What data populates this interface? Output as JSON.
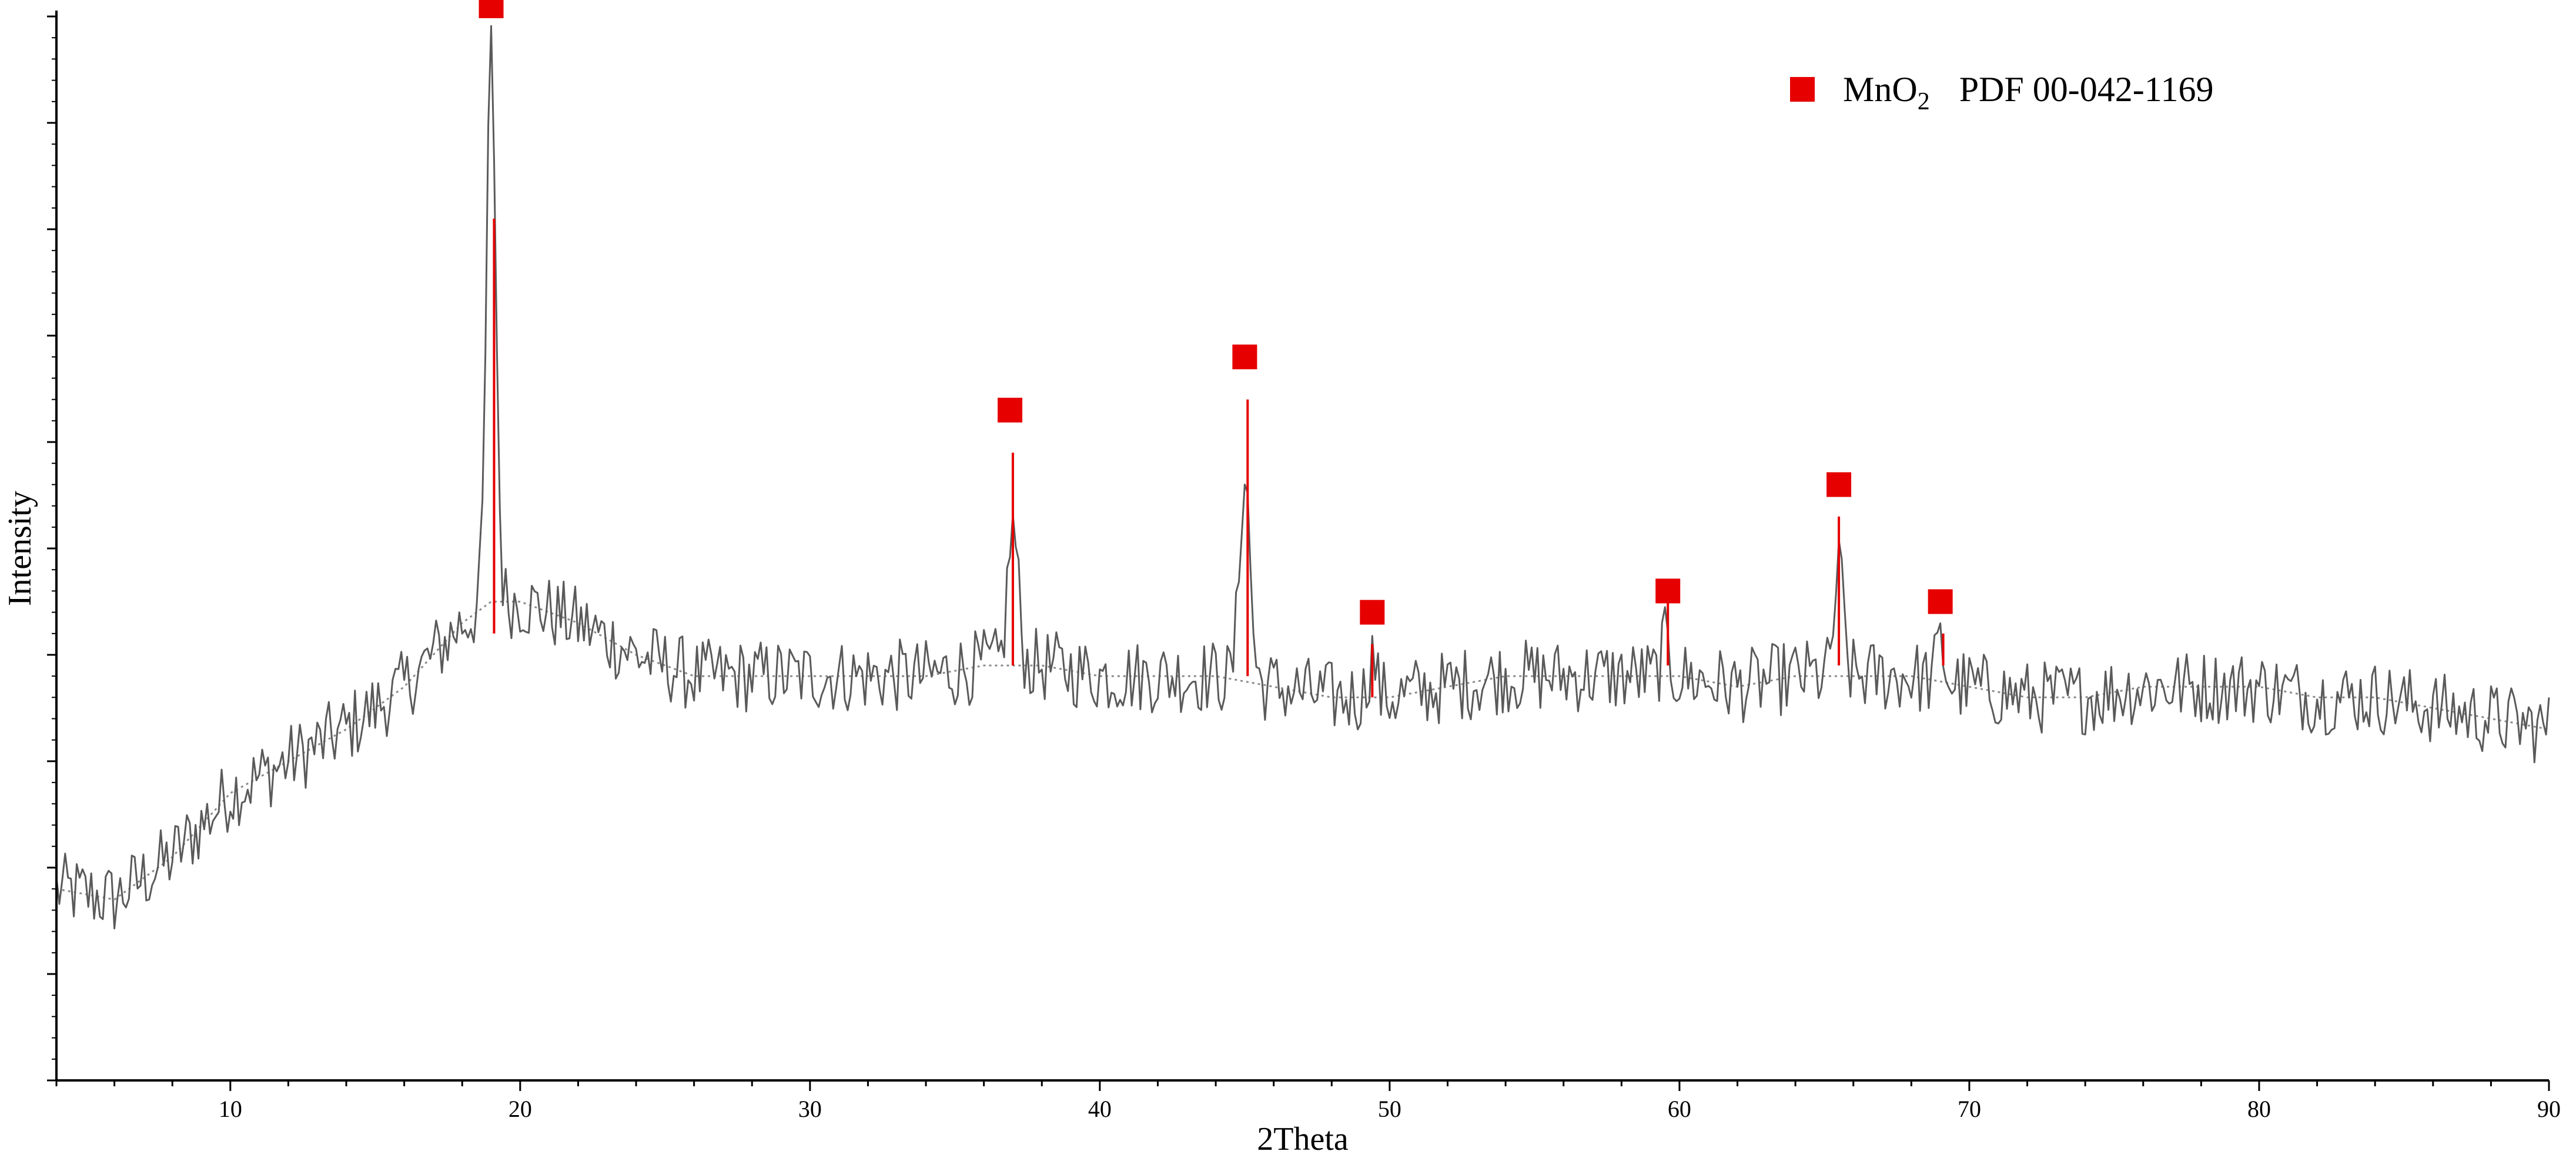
{
  "chart_data": {
    "type": "line",
    "title": "",
    "xlabel": "2Theta",
    "ylabel": "Intensity",
    "xlim": [
      4,
      90
    ],
    "ylim": [
      0,
      100
    ],
    "x_ticks": [
      10,
      20,
      30,
      40,
      50,
      60,
      70,
      80,
      90
    ],
    "y_tick_labels_shown": false,
    "grid": false,
    "colors": {
      "pattern": "#5a5a5a",
      "background_fit": "#8a8a8a",
      "reference": "#e60000",
      "axis": "#000000"
    },
    "legend": {
      "position": "top-right",
      "entries": [
        {
          "marker": "filled-square",
          "color": "#e60000",
          "name": "MnO",
          "subscript": "2",
          "label": "PDF 00-042-1169"
        }
      ]
    },
    "series": [
      {
        "name": "",
        "style": "solid",
        "kind": "measured-pattern",
        "noise_amplitude": 3.5,
        "baseline": [
          [
            4,
            18
          ],
          [
            6,
            17
          ],
          [
            8,
            21
          ],
          [
            10,
            27
          ],
          [
            12,
            30
          ],
          [
            14,
            33
          ],
          [
            16,
            37
          ],
          [
            18,
            43
          ],
          [
            19,
            45
          ],
          [
            20,
            45
          ],
          [
            22,
            43
          ],
          [
            24,
            40
          ],
          [
            26,
            38
          ],
          [
            28,
            38
          ],
          [
            30,
            38
          ],
          [
            32,
            38
          ],
          [
            34,
            38
          ],
          [
            36,
            39
          ],
          [
            38,
            39
          ],
          [
            40,
            38
          ],
          [
            42,
            38
          ],
          [
            44,
            38
          ],
          [
            46,
            37
          ],
          [
            48,
            36
          ],
          [
            50,
            36
          ],
          [
            52,
            37
          ],
          [
            54,
            38
          ],
          [
            56,
            38
          ],
          [
            58,
            38
          ],
          [
            60,
            38
          ],
          [
            62,
            37
          ],
          [
            64,
            38
          ],
          [
            66,
            38
          ],
          [
            68,
            38
          ],
          [
            70,
            37
          ],
          [
            72,
            36
          ],
          [
            74,
            36
          ],
          [
            76,
            37
          ],
          [
            78,
            37
          ],
          [
            80,
            37
          ],
          [
            82,
            36
          ],
          [
            84,
            36
          ],
          [
            86,
            35
          ],
          [
            88,
            34
          ],
          [
            90,
            33
          ]
        ],
        "peaks": [
          {
            "x": 19.0,
            "height": 97,
            "width": 0.35
          },
          {
            "x": 37.0,
            "height": 52,
            "width": 0.4
          },
          {
            "x": 45.0,
            "height": 57,
            "width": 0.4
          },
          {
            "x": 49.4,
            "height": 40,
            "width": 0.3
          },
          {
            "x": 59.5,
            "height": 41,
            "width": 0.3
          },
          {
            "x": 65.5,
            "height": 48,
            "width": 0.35
          },
          {
            "x": 69.0,
            "height": 41,
            "width": 0.3
          }
        ]
      },
      {
        "name": "",
        "style": "dotted",
        "kind": "background-fit",
        "points": [
          [
            4,
            18
          ],
          [
            6,
            17
          ],
          [
            8,
            21
          ],
          [
            10,
            27
          ],
          [
            12,
            30
          ],
          [
            14,
            33
          ],
          [
            16,
            37
          ],
          [
            18,
            43
          ],
          [
            19,
            45
          ],
          [
            20,
            45
          ],
          [
            22,
            43
          ],
          [
            24,
            40
          ],
          [
            26,
            38
          ],
          [
            28,
            38
          ],
          [
            30,
            38
          ],
          [
            32,
            38
          ],
          [
            34,
            38
          ],
          [
            36,
            39
          ],
          [
            38,
            39
          ],
          [
            40,
            38
          ],
          [
            42,
            38
          ],
          [
            44,
            38
          ],
          [
            46,
            37
          ],
          [
            48,
            36
          ],
          [
            50,
            36
          ],
          [
            52,
            37
          ],
          [
            54,
            38
          ],
          [
            56,
            38
          ],
          [
            58,
            38
          ],
          [
            60,
            38
          ],
          [
            62,
            37
          ],
          [
            64,
            38
          ],
          [
            66,
            38
          ],
          [
            68,
            38
          ],
          [
            70,
            37
          ],
          [
            72,
            36
          ],
          [
            74,
            36
          ],
          [
            76,
            37
          ],
          [
            78,
            37
          ],
          [
            80,
            37
          ],
          [
            82,
            36
          ],
          [
            84,
            36
          ],
          [
            86,
            35
          ],
          [
            88,
            34
          ],
          [
            90,
            33
          ]
        ]
      }
    ],
    "reference_peaks": [
      {
        "x": 19.1,
        "bottom": 42,
        "top": 81
      },
      {
        "x": 37.0,
        "bottom": 39,
        "top": 59
      },
      {
        "x": 45.1,
        "bottom": 38,
        "top": 64
      },
      {
        "x": 49.4,
        "bottom": 36,
        "top": 41
      },
      {
        "x": 59.6,
        "bottom": 39,
        "top": 45
      },
      {
        "x": 65.5,
        "bottom": 39,
        "top": 53
      },
      {
        "x": 69.1,
        "bottom": 39,
        "top": 42
      }
    ],
    "reference_markers": [
      {
        "x": 19.0,
        "y": 101
      },
      {
        "x": 36.9,
        "y": 63
      },
      {
        "x": 45.0,
        "y": 68
      },
      {
        "x": 49.4,
        "y": 44
      },
      {
        "x": 59.6,
        "y": 46
      },
      {
        "x": 65.5,
        "y": 56
      },
      {
        "x": 69.0,
        "y": 45
      }
    ]
  }
}
